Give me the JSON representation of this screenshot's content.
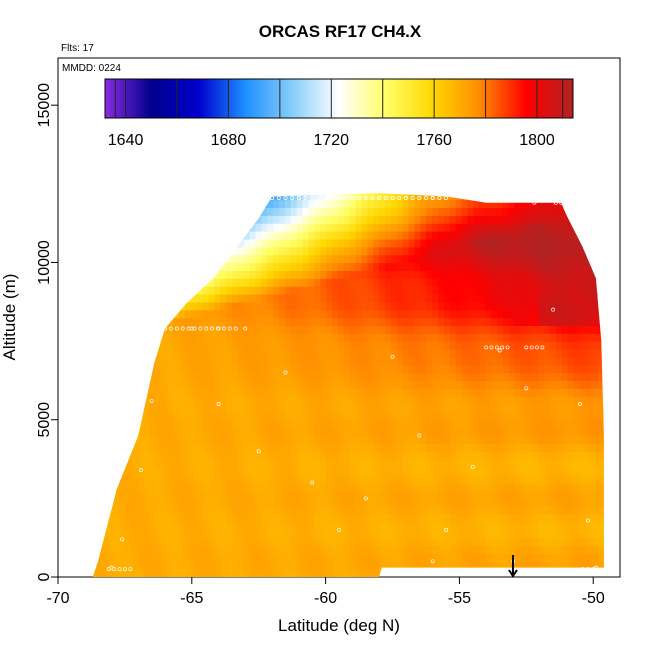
{
  "chart_data": {
    "type": "heatmap",
    "title": "ORCAS RF17 CH4.X",
    "flights_label": "Flts: 17",
    "date_label": "MMDD: 0224",
    "xlabel": "Latitude (deg N)",
    "ylabel": "Altitude (m)",
    "xlim": [
      -70,
      -49
    ],
    "ylim": [
      0,
      16500
    ],
    "x_ticks": [
      -70,
      -65,
      -60,
      -55,
      -50
    ],
    "x_tick_labels": [
      "-70",
      "-65",
      "-60",
      "-55",
      "-50"
    ],
    "y_ticks": [
      0,
      5000,
      10000,
      15000
    ],
    "y_tick_labels": [
      "0",
      "5000",
      "10000",
      "15000"
    ],
    "colorbar": {
      "range": [
        1632,
        1814
      ],
      "ticks": [
        1640,
        1680,
        1720,
        1760,
        1800
      ],
      "tick_labels": [
        "1640",
        "1680",
        "1720",
        "1760",
        "1800"
      ],
      "minor_ticks": [
        1660,
        1700,
        1740,
        1780
      ],
      "colors": [
        "#8a2be2",
        "#00008b",
        "#0000cd",
        "#1e90ff",
        "#87cefa",
        "#ffffff",
        "#ffff66",
        "#ffd700",
        "#ff8c00",
        "#ff0000",
        "#b22222"
      ]
    },
    "coverage": {
      "description": "domain boundary of gridded values, latitude vs altitude",
      "left_edge": [
        [
          -68.7,
          0
        ],
        [
          -68.5,
          500
        ],
        [
          -68.2,
          1500
        ],
        [
          -67.8,
          2800
        ],
        [
          -67.0,
          4500
        ],
        [
          -66.4,
          6800
        ],
        [
          -66.0,
          7900
        ],
        [
          -65.2,
          8700
        ],
        [
          -64.2,
          9500
        ],
        [
          -63.3,
          10500
        ],
        [
          -62.5,
          11400
        ],
        [
          -62.0,
          12100
        ]
      ],
      "top_edge": [
        [
          -62.0,
          12100
        ],
        [
          -58.0,
          12200
        ],
        [
          -55.5,
          12100
        ],
        [
          -54.0,
          11900
        ],
        [
          -51.2,
          11900
        ],
        [
          -51.0,
          11500
        ],
        [
          -50.4,
          10500
        ],
        [
          -49.9,
          9500
        ],
        [
          -49.7,
          7500
        ],
        [
          -49.6,
          4500
        ],
        [
          -49.6,
          200
        ]
      ],
      "bottom_gap": [
        [
          -58.0,
          0
        ],
        [
          -57.9,
          300
        ],
        [
          -49.6,
          300
        ]
      ]
    },
    "ch4_structure": {
      "boundary_layer_value": 1770,
      "upper_north_value": 1805,
      "upper_south_top_value": 1690,
      "transition_band_value": 1740
    },
    "observations_sample": [
      [
        -68.0,
        300
      ],
      [
        -67.6,
        1200
      ],
      [
        -66.9,
        3400
      ],
      [
        -66.5,
        5600
      ],
      [
        -66.0,
        7900
      ],
      [
        -65.0,
        7900
      ],
      [
        -64.0,
        7900
      ],
      [
        -63.0,
        7900
      ],
      [
        -62.0,
        12050
      ],
      [
        -61.0,
        12050
      ],
      [
        -60.0,
        12050
      ],
      [
        -59.0,
        12050
      ],
      [
        -58.0,
        12050
      ],
      [
        -57.0,
        12050
      ],
      [
        -56.0,
        12050
      ],
      [
        -64.0,
        5500
      ],
      [
        -62.5,
        4000
      ],
      [
        -61.5,
        6500
      ],
      [
        -60.5,
        3000
      ],
      [
        -59.5,
        1500
      ],
      [
        -58.5,
        2500
      ],
      [
        -57.5,
        7000
      ],
      [
        -56.5,
        4500
      ],
      [
        -55.5,
        1500
      ],
      [
        -54.5,
        3500
      ],
      [
        -53.5,
        7200
      ],
      [
        -52.5,
        6000
      ],
      [
        -51.5,
        8500
      ],
      [
        -51.0,
        11900
      ],
      [
        -52.2,
        11900
      ],
      [
        -50.5,
        5500
      ],
      [
        -50.2,
        1800
      ],
      [
        -49.9,
        300
      ],
      [
        -53.0,
        500
      ],
      [
        -56.0,
        500
      ]
    ],
    "annotations": [
      {
        "type": "arrow",
        "x": -53.0,
        "direction": "down",
        "label": ""
      }
    ]
  }
}
